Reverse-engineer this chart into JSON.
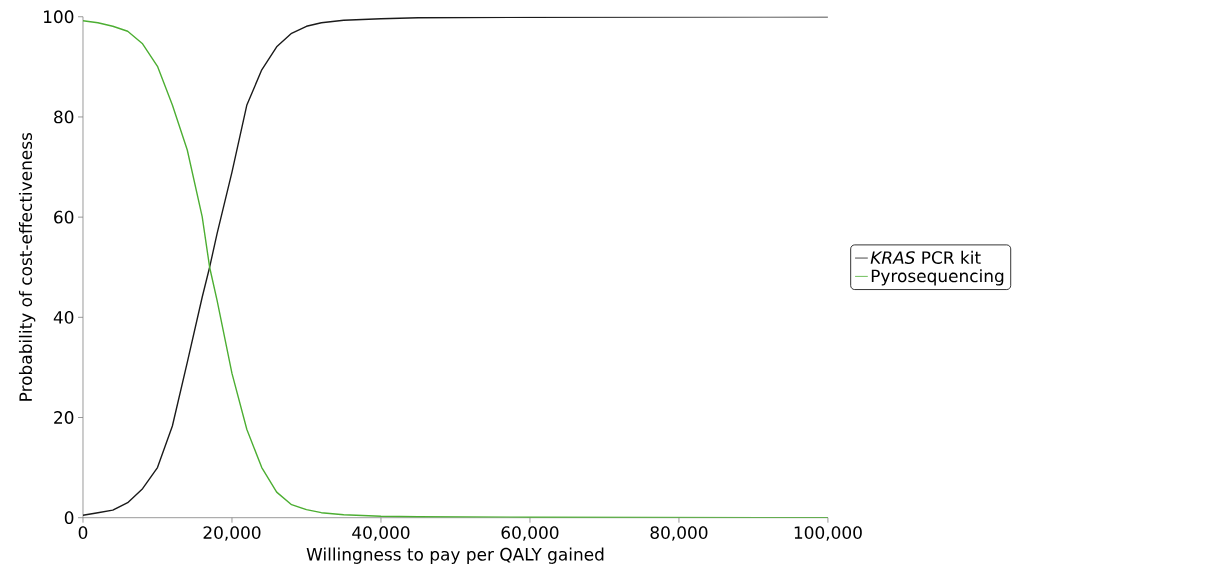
{
  "chart_data": {
    "type": "line",
    "xlabel": "Willingness to pay per QALY gained",
    "ylabel": "Probability of cost-effectiveness",
    "x": [
      0,
      2000,
      4000,
      6000,
      8000,
      10000,
      12000,
      14000,
      16000,
      17000,
      18000,
      20000,
      22000,
      24000,
      26000,
      28000,
      30000,
      32000,
      35000,
      40000,
      45000,
      60000,
      100000
    ],
    "series": [
      {
        "name": "*KRAS* PCR kit",
        "color": "#1a1a1a",
        "values": [
          0.5,
          1,
          1.5,
          3,
          5.8,
          10,
          18.3,
          31,
          44,
          50,
          56.7,
          69,
          82.4,
          89.4,
          94,
          96.7,
          98.1,
          98.8,
          99.3,
          99.6,
          99.8,
          99.9,
          100
        ]
      },
      {
        "name": "Pyrosequencing",
        "color": "#4cae32",
        "values": [
          99.2,
          98.8,
          98.1,
          97.1,
          94.6,
          90.1,
          82.4,
          73.4,
          60.1,
          50,
          43.4,
          28.8,
          17.6,
          10,
          5.1,
          2.6,
          1.6,
          1,
          0.6,
          0.3,
          0.2,
          0.1,
          0
        ]
      }
    ],
    "xlim": [
      0,
      100000
    ],
    "xticks": [
      0,
      {
        "value": 20000,
        "label": "20,000"
      },
      {
        "value": 40000,
        "label": "40,000"
      },
      {
        "value": 60000,
        "label": "60,000"
      },
      {
        "value": 80000,
        "label": "80,000"
      },
      {
        "value": 100000,
        "label": "100,000"
      }
    ],
    "ylim": [
      0,
      100
    ],
    "yticks": [
      0,
      20,
      40,
      60,
      80,
      100
    ],
    "legend": "right",
    "grid": false,
    "marker": "none",
    "line_style": "solid"
  }
}
